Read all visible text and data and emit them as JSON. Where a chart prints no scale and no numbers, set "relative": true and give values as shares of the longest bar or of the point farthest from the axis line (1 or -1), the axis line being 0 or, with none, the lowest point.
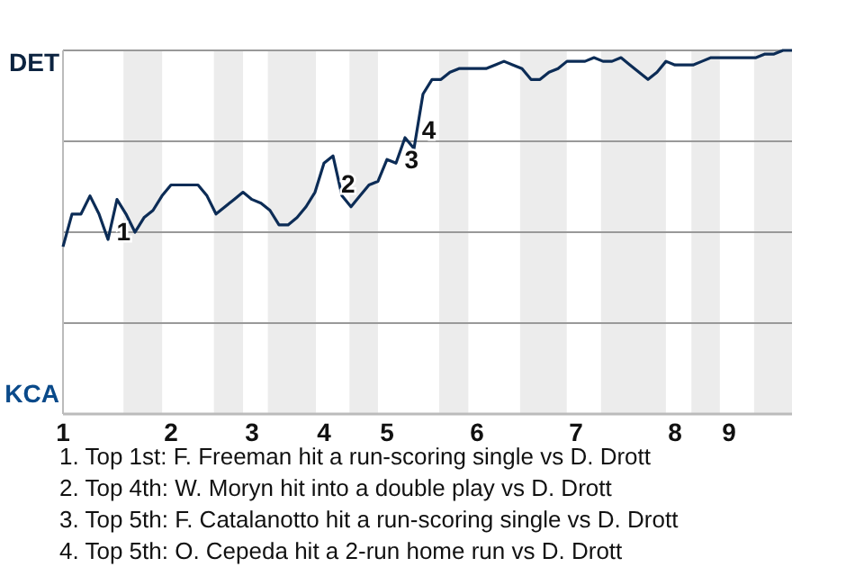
{
  "chart_data": {
    "type": "line",
    "relative": true,
    "categories": [
      "1",
      null,
      null,
      null,
      null,
      null,
      null,
      null,
      null,
      null,
      null,
      null,
      "2",
      null,
      null,
      null,
      null,
      null,
      null,
      null,
      null,
      "3",
      null,
      null,
      null,
      null,
      null,
      null,
      null,
      "4",
      null,
      null,
      null,
      null,
      null,
      null,
      "5",
      null,
      null,
      null,
      null,
      null,
      null,
      null,
      null,
      null,
      "6",
      null,
      null,
      null,
      null,
      null,
      null,
      null,
      null,
      null,
      null,
      "7",
      null,
      null,
      null,
      null,
      null,
      null,
      null,
      null,
      null,
      null,
      "8",
      null,
      null,
      null,
      null,
      null,
      "9",
      null,
      null,
      null,
      null,
      null,
      null,
      null
    ],
    "grid": "y",
    "marker": "none",
    "line_style": "solid",
    "series": [
      {
        "color": "#0c2c56",
        "values": [
          0.46,
          0.55,
          0.55,
          0.6,
          0.55,
          0.48,
          0.59,
          0.55,
          0.5,
          0.54,
          0.56,
          0.6,
          0.63,
          0.63,
          0.63,
          0.63,
          0.6,
          0.55,
          0.57,
          0.59,
          0.61,
          0.59,
          0.58,
          0.56,
          0.52,
          0.52,
          0.54,
          0.57,
          0.61,
          0.69,
          0.71,
          0.6,
          0.57,
          0.6,
          0.63,
          0.64,
          0.7,
          0.69,
          0.76,
          0.73,
          0.88,
          0.92,
          0.92,
          0.94,
          0.95,
          0.95,
          0.95,
          0.95,
          0.96,
          0.97,
          0.96,
          0.95,
          0.92,
          0.92,
          0.94,
          0.95,
          0.97,
          0.97,
          0.97,
          0.98,
          0.97,
          0.97,
          0.98,
          0.96,
          0.94,
          0.92,
          0.94,
          0.97,
          0.96,
          0.96,
          0.96,
          0.97,
          0.98,
          0.98,
          0.98,
          0.98,
          0.98,
          0.98,
          0.99,
          0.99,
          1,
          1
        ]
      }
    ],
    "annotations": [
      "DET",
      "KCA",
      "1",
      "2",
      "3",
      "4",
      "1. Top 1st: F. Freeman hit a run-scoring single vs D. Drott",
      "2. Top 4th: W. Moryn hit into a double play vs D. Drott",
      "3. Top 5th: F. Catalanotto hit a run-scoring single vs D. Drott",
      "4. Top 5th: O. Cepeda hit a 2-run home run vs D. Drott"
    ]
  }
}
